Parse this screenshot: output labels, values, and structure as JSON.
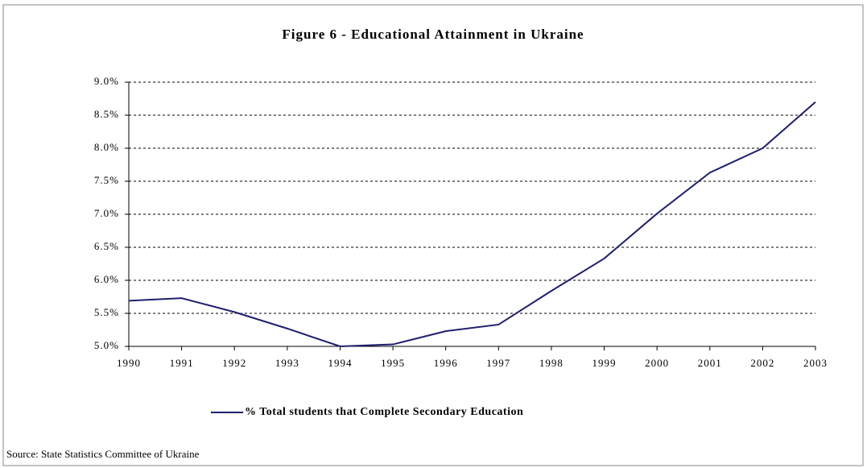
{
  "chart_data": {
    "type": "line",
    "title": "Figure 6 - Educational Attainment in Ukraine",
    "categories": [
      "1990",
      "1991",
      "1992",
      "1993",
      "1994",
      "1995",
      "1996",
      "1997",
      "1998",
      "1999",
      "2000",
      "2001",
      "2002",
      "2003"
    ],
    "series": [
      {
        "name": "% Total students that Complete Secondary Education",
        "color": "#1f1f6e",
        "values": [
          5.69,
          5.73,
          5.52,
          5.27,
          5.0,
          5.03,
          5.23,
          5.33,
          5.84,
          6.33,
          7.01,
          7.63,
          8.0,
          8.7
        ]
      }
    ],
    "ylim": [
      5.0,
      9.0
    ],
    "yticks": [
      {
        "value": 5.0,
        "label": "5.0%"
      },
      {
        "value": 5.5,
        "label": "5.5%"
      },
      {
        "value": 6.0,
        "label": "6.0%"
      },
      {
        "value": 6.5,
        "label": "6.5%"
      },
      {
        "value": 7.0,
        "label": "7.0%"
      },
      {
        "value": 7.5,
        "label": "7.5%"
      },
      {
        "value": 8.0,
        "label": "8.0%"
      },
      {
        "value": 8.5,
        "label": "8.5%"
      },
      {
        "value": 9.0,
        "label": "9.0%"
      }
    ],
    "grid": true,
    "legend": "bottom",
    "source": "Source: State Statistics Committee of Ukraine"
  }
}
